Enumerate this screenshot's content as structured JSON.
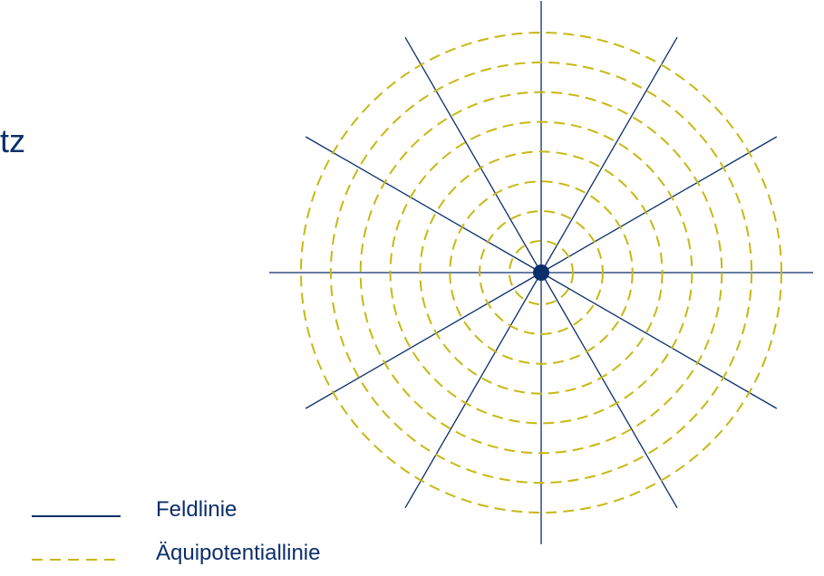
{
  "title_fragment": "tz",
  "legend": {
    "field_line_label": "Feldlinie",
    "equipotential_label": "Äquipotentiallinie"
  },
  "colors": {
    "field_line": "#0b2f6b",
    "equipotential": "#c8b814",
    "charge": "#0b2f6b"
  },
  "diagram": {
    "field_line_count": 12,
    "equipotential_count": 8
  }
}
